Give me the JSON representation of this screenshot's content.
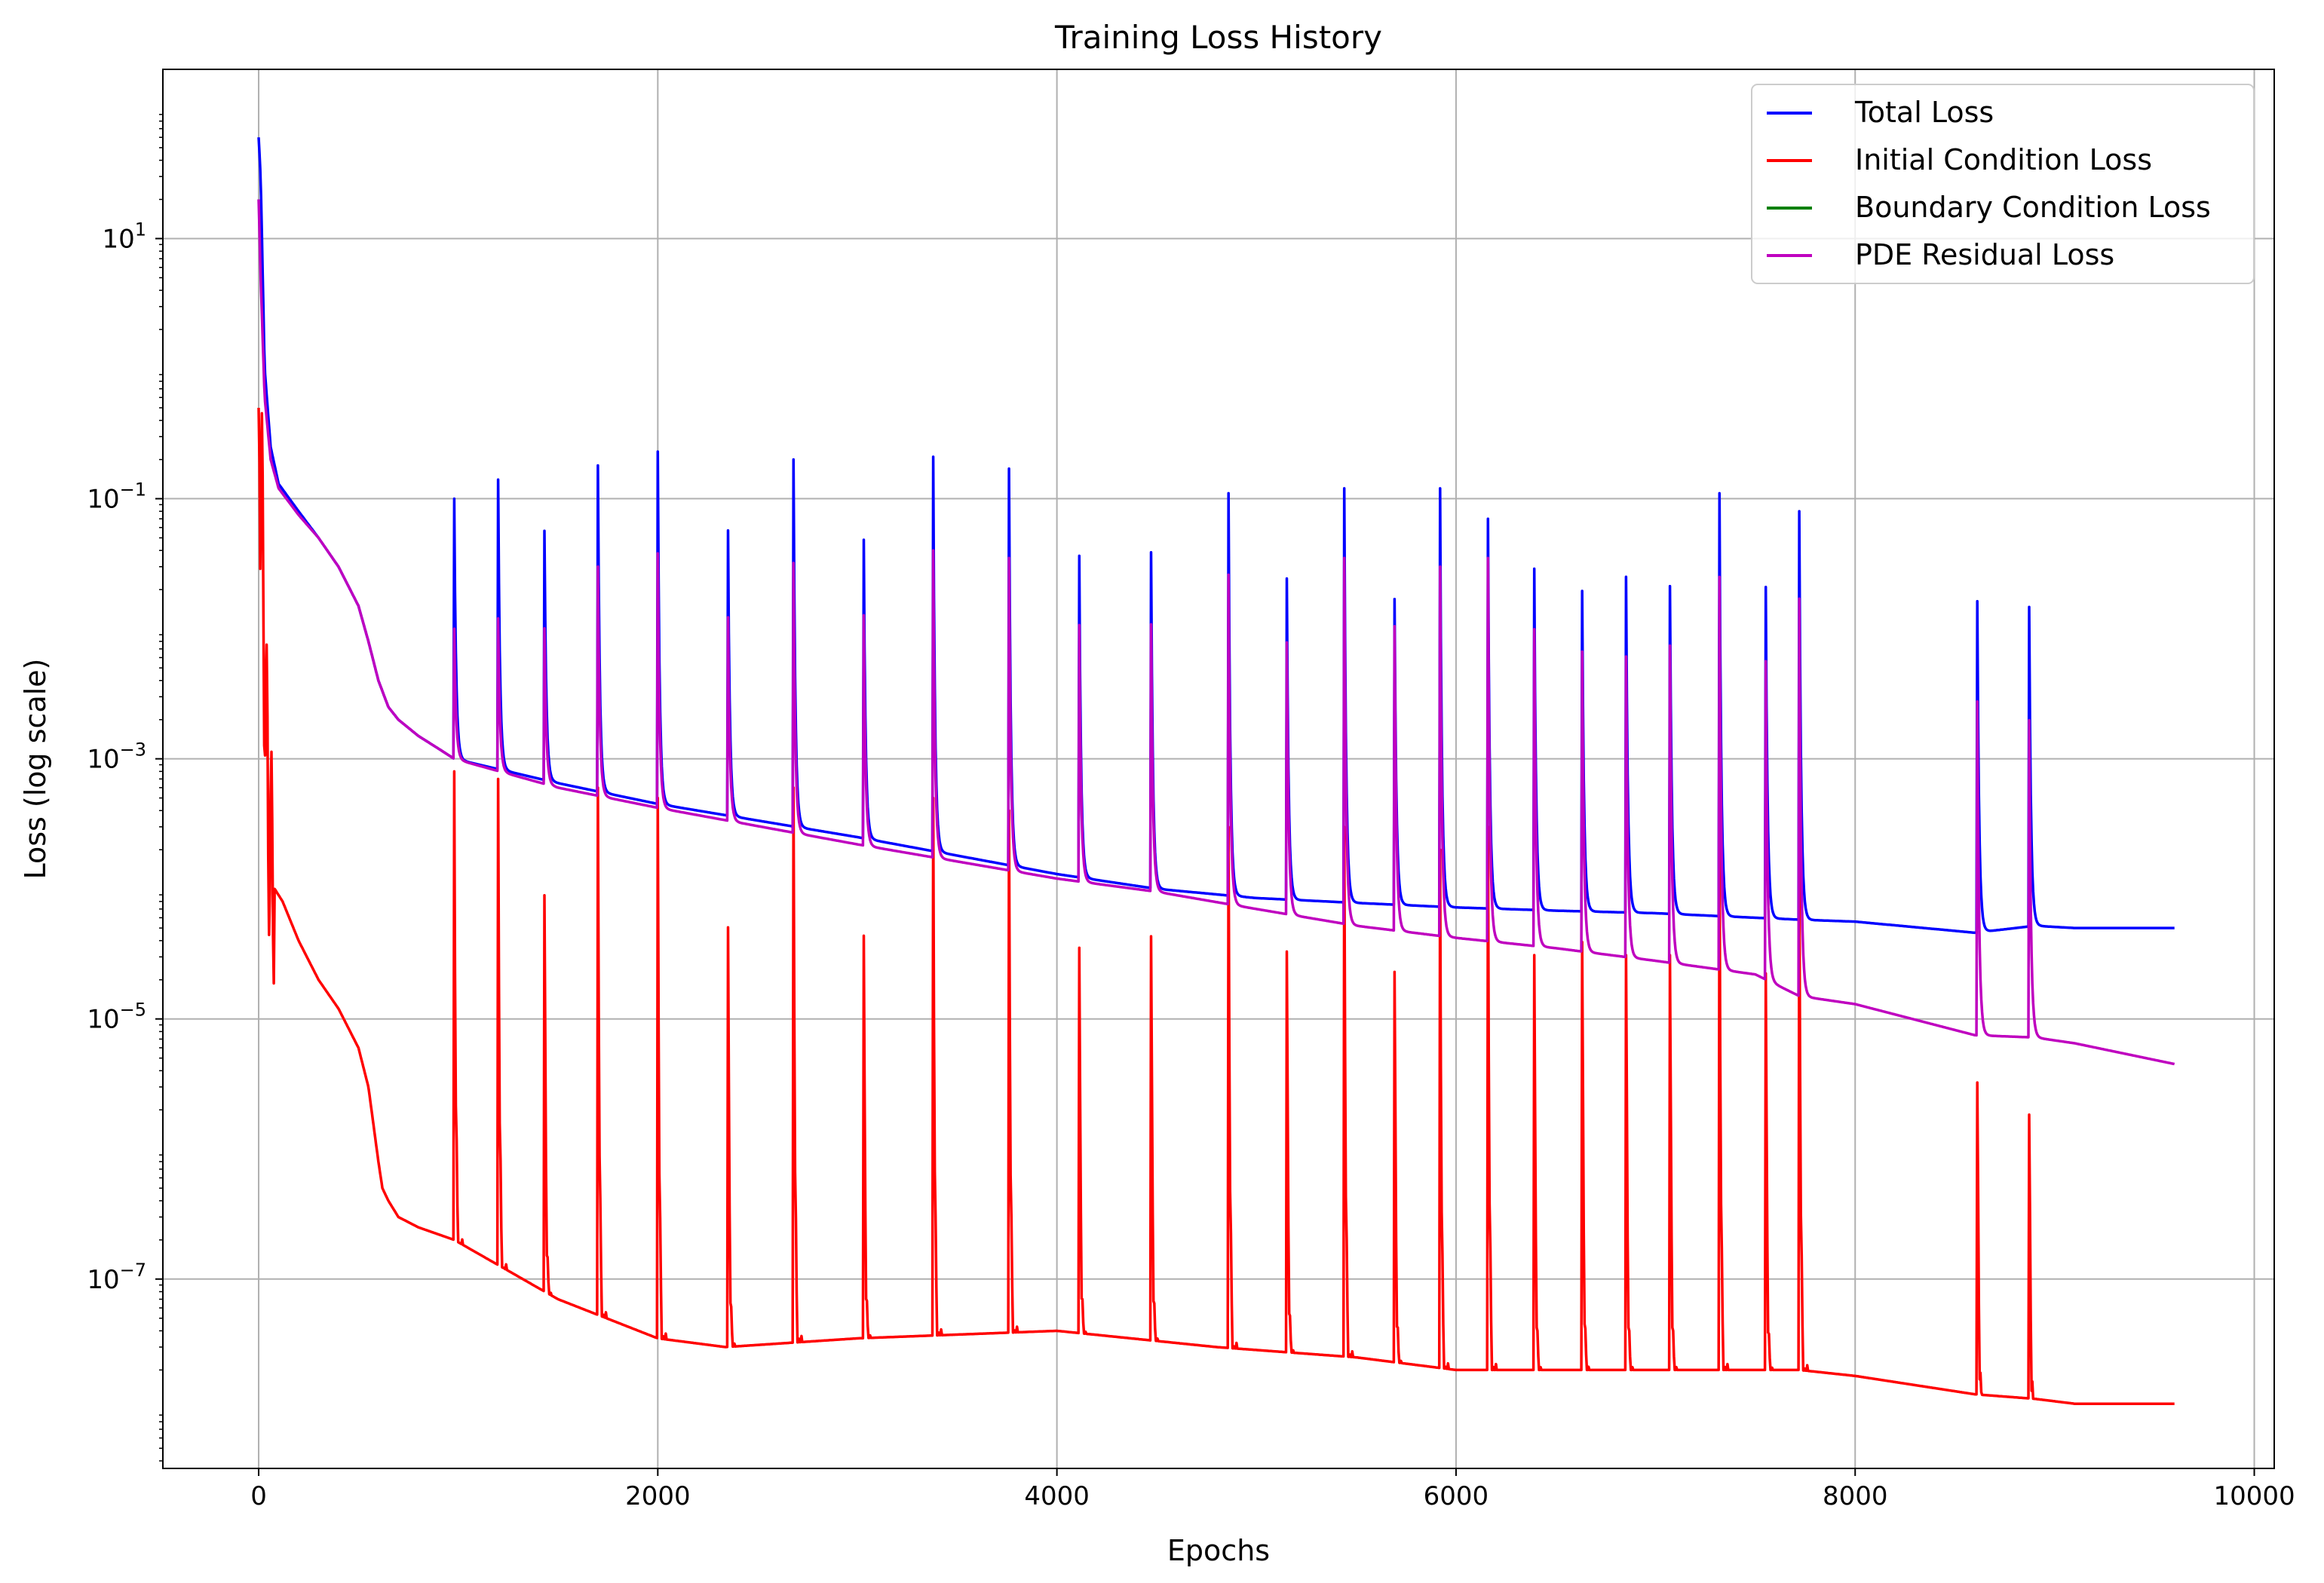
{
  "chart_data": {
    "type": "line",
    "title": "Training Loss History",
    "xlabel": "Epochs",
    "ylabel": "Loss (log scale)",
    "yscale": "log",
    "xlim": [
      -480,
      10100
    ],
    "ylim": [
      3.5e-09,
      200
    ],
    "xticks": [
      0,
      2000,
      4000,
      6000,
      8000,
      10000
    ],
    "xtick_labels": [
      "0",
      "2000",
      "4000",
      "6000",
      "8000",
      "10000"
    ],
    "yticks": [
      {
        "value": 10,
        "base": "10",
        "exp": "1"
      },
      {
        "value": 0.1,
        "base": "10",
        "exp": "−1"
      },
      {
        "value": 0.001,
        "base": "10",
        "exp": "−3"
      },
      {
        "value": 1e-05,
        "base": "10",
        "exp": "−5"
      },
      {
        "value": 1e-07,
        "base": "10",
        "exp": "−7"
      }
    ],
    "grid": true,
    "legend_position": "top-right",
    "spike_epochs": [
      980,
      1200,
      1430,
      1700,
      2000,
      2350,
      2680,
      3030,
      3380,
      3760,
      4110,
      4470,
      4860,
      5150,
      5440,
      5690,
      5920,
      6160,
      6390,
      6630,
      6850,
      7070,
      7320,
      7550,
      7720,
      8610,
      8870
    ],
    "series": [
      {
        "name": "Total Loss",
        "color": "#0000ff",
        "x": [
          0,
          10,
          30,
          60,
          100,
          200,
          300,
          400,
          500,
          550,
          600,
          650,
          700,
          800,
          900,
          980,
          1500,
          2000,
          3000,
          4000,
          4500,
          5000,
          5500,
          6000,
          6500,
          7000,
          7500,
          7720,
          8000,
          8600,
          8900,
          9100,
          9600
        ],
        "y": [
          60,
          30,
          1.0,
          0.25,
          0.13,
          0.08,
          0.05,
          0.03,
          0.015,
          0.008,
          0.004,
          0.0025,
          0.002,
          0.0015,
          0.0012,
          0.001,
          0.00065,
          0.00045,
          0.00025,
          0.00013,
          0.0001,
          8.5e-05,
          7.8e-05,
          7.2e-05,
          6.8e-05,
          6.5e-05,
          6e-05,
          5.8e-05,
          5.6e-05,
          4.6e-05,
          5.2e-05,
          5e-05,
          5e-05
        ],
        "spike_peaks": [
          0.1,
          0.14,
          0.17,
          0.18,
          0.23,
          0.2,
          0.2,
          0.18,
          0.21,
          0.17,
          0.15,
          0.17,
          0.11,
          0.1,
          0.12,
          0.065,
          0.12,
          0.07,
          0.13,
          0.08,
          0.11,
          0.09,
          0.11,
          0.09,
          0.08,
          0.07,
          0.06
        ]
      },
      {
        "name": "Initial Condition Loss",
        "color": "#ff0000",
        "x": [
          0,
          5,
          15,
          30,
          50,
          80,
          120,
          200,
          300,
          400,
          500,
          550,
          600,
          620,
          650,
          700,
          800,
          980,
          1500,
          2000,
          2340,
          3000,
          4000,
          4800,
          5500,
          6000,
          6500,
          7000,
          7500,
          7720,
          8000,
          8600,
          8900,
          9100,
          9600
        ],
        "y": [
          0.5,
          0.15,
          0.1,
          0.005,
          0.0003,
          0.0001,
          8e-05,
          4e-05,
          2e-05,
          1.2e-05,
          6e-06,
          3e-06,
          8e-07,
          5e-07,
          4e-07,
          3e-07,
          2.5e-07,
          2e-07,
          7e-08,
          3.5e-08,
          3e-08,
          3.5e-08,
          4e-08,
          3e-08,
          2.5e-08,
          2e-08,
          2e-08,
          2e-08,
          2e-08,
          2e-08,
          1.8e-08,
          1.3e-08,
          1.2e-08,
          1.1e-08,
          1.1e-08
        ],
        "spike_peaks": [
          0.0008,
          0.0007,
          0.0008,
          0.0006,
          0.0005,
          0.0005,
          0.0006,
          0.0004,
          0.0005,
          0.0004,
          0.0003,
          0.0004,
          0.0003,
          0.0003,
          0.0003,
          0.0002,
          0.0002,
          0.0003,
          0.0003,
          0.0004,
          0.0003,
          0.0003,
          0.0003,
          0.0002,
          0.0002,
          2e-05,
          1e-05
        ]
      },
      {
        "name": "Boundary Condition Loss",
        "color": "#008000",
        "x": [],
        "y": [],
        "spike_peaks": []
      },
      {
        "name": "PDE Residual Loss",
        "color": "#bf00bf",
        "x": [
          0,
          10,
          30,
          60,
          100,
          200,
          300,
          400,
          500,
          550,
          600,
          650,
          700,
          800,
          900,
          980,
          1500,
          2000,
          3000,
          4000,
          4500,
          5000,
          5500,
          6000,
          6500,
          7000,
          7500,
          7720,
          8000,
          8600,
          8900,
          9100,
          9600
        ],
        "y": [
          20,
          5,
          0.6,
          0.2,
          0.12,
          0.075,
          0.05,
          0.03,
          0.015,
          0.008,
          0.004,
          0.0025,
          0.002,
          0.0015,
          0.0012,
          0.001,
          0.0006,
          0.00042,
          0.00022,
          0.00012,
          9.5e-05,
          7e-05,
          5.2e-05,
          4.2e-05,
          3.5e-05,
          2.8e-05,
          2.2e-05,
          1.5e-05,
          1.3e-05,
          7.5e-06,
          7.2e-06,
          6.5e-06,
          4.5e-06
        ],
        "spike_peaks": [
          0.01,
          0.012,
          0.02,
          0.03,
          0.038,
          0.03,
          0.032,
          0.035,
          0.04,
          0.035,
          0.033,
          0.035,
          0.026,
          0.026,
          0.035,
          0.04,
          0.03,
          0.035,
          0.04,
          0.025,
          0.023,
          0.03,
          0.025,
          0.023,
          0.017,
          0.012,
          0.008
        ]
      }
    ]
  }
}
